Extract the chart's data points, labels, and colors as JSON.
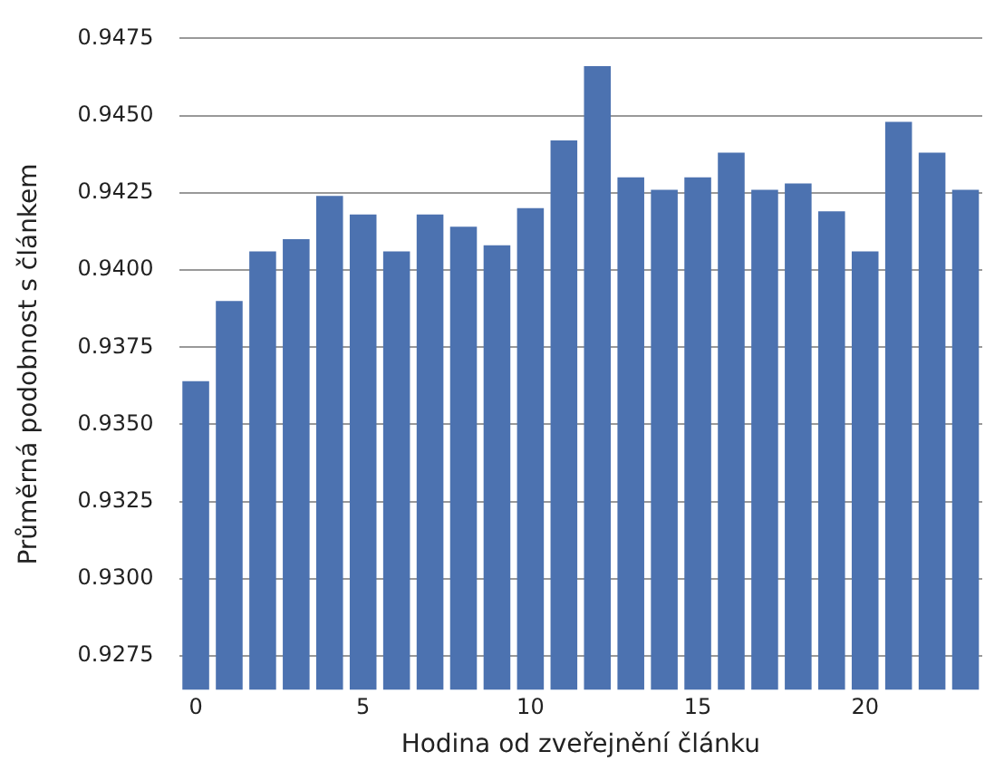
{
  "chart_data": {
    "type": "bar",
    "xlabel": "Hodina od zveřejnění článku",
    "ylabel": "Průměrná podobnost s článkem",
    "categories": [
      "0",
      null,
      null,
      null,
      null,
      "5",
      null,
      null,
      null,
      null,
      "10",
      null,
      null,
      null,
      null,
      "15",
      null,
      null,
      null,
      null,
      "20",
      null,
      null,
      null
    ],
    "values": [
      0.9364,
      0.939,
      0.9406,
      0.941,
      0.9424,
      0.9418,
      0.9406,
      0.9418,
      0.9414,
      0.9408,
      0.942,
      0.9442,
      0.9466,
      0.943,
      0.9426,
      0.943,
      0.9438,
      0.9426,
      0.9428,
      0.9419,
      0.9406,
      0.9448,
      0.9438,
      0.9426
    ],
    "color": "#4c72b0",
    "ylim": [
      0.9264,
      0.9475
    ],
    "yticks": [
      {
        "value": 0.9275,
        "label": "0.9275"
      },
      {
        "value": 0.93,
        "label": "0.9300"
      },
      {
        "value": 0.9325,
        "label": "0.9325"
      },
      {
        "value": 0.935,
        "label": "0.9350"
      },
      {
        "value": 0.9375,
        "label": "0.9375"
      },
      {
        "value": 0.94,
        "label": "0.9400"
      },
      {
        "value": 0.9425,
        "label": "0.9425"
      },
      {
        "value": 0.945,
        "label": "0.9450"
      },
      {
        "value": 0.9475,
        "label": "0.9475"
      }
    ],
    "grid": "y",
    "legend": false
  }
}
